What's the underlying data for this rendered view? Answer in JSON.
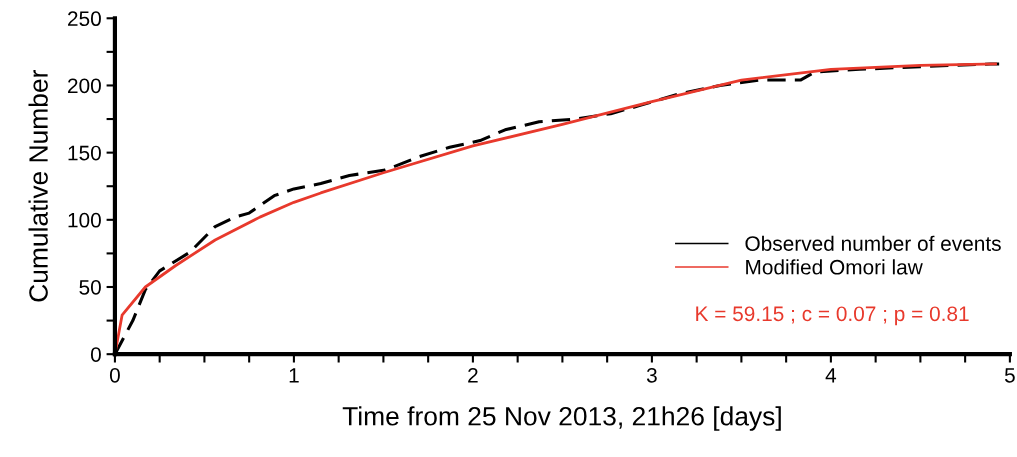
{
  "chart_data": {
    "type": "line",
    "xlabel": "Time from 25 Nov 2013, 21h26 [days]",
    "ylabel": "Cumulative Number",
    "xlim": [
      0,
      5
    ],
    "ylim": [
      0,
      250
    ],
    "xticks": [
      0,
      {
        "value": 0.25,
        "label": null
      },
      {
        "value": 0.5,
        "label": null
      },
      {
        "value": 0.75,
        "label": null
      },
      1,
      {
        "value": 1.25,
        "label": null
      },
      {
        "value": 1.5,
        "label": null
      },
      {
        "value": 1.75,
        "label": null
      },
      2,
      {
        "value": 2.25,
        "label": null
      },
      {
        "value": 2.5,
        "label": null
      },
      {
        "value": 2.75,
        "label": null
      },
      3,
      {
        "value": 3.25,
        "label": null
      },
      {
        "value": 3.5,
        "label": null
      },
      {
        "value": 3.75,
        "label": null
      },
      4,
      {
        "value": 4.25,
        "label": null
      },
      {
        "value": 4.5,
        "label": null
      },
      {
        "value": 4.75,
        "label": null
      },
      5
    ],
    "yticks": [
      0,
      {
        "value": 25,
        "label": null
      },
      50,
      {
        "value": 75,
        "label": null
      },
      100,
      {
        "value": 125,
        "label": null
      },
      150,
      {
        "value": 175,
        "label": null
      },
      200,
      {
        "value": 225,
        "label": null
      },
      250
    ],
    "grid": false,
    "legend": "bottom right",
    "series": [
      {
        "name": "Observed number of events",
        "color": "#000000",
        "line_style": "dashed",
        "x": [
          0,
          0.1,
          0.17,
          0.25,
          0.42,
          0.56,
          0.67,
          0.75,
          0.89,
          1.0,
          1.15,
          1.31,
          1.51,
          1.7,
          1.87,
          2.04,
          2.18,
          2.37,
          2.57,
          2.77,
          2.93,
          3.16,
          3.38,
          3.6,
          3.83,
          3.91,
          4.16,
          4.5,
          4.89,
          4.94
        ],
        "values": [
          0,
          25,
          48,
          62,
          76,
          95,
          102,
          105,
          118,
          123,
          127,
          133,
          137,
          147,
          154,
          159,
          167,
          173,
          175,
          179,
          185,
          194,
          200,
          204,
          204,
          210,
          212,
          214,
          216,
          216
        ]
      },
      {
        "name": "Modified Omori law",
        "color": "#e8392c",
        "line_style": "solid",
        "x": [
          0,
          0.04,
          0.17,
          0.34,
          0.56,
          0.81,
          1.0,
          1.15,
          1.5,
          2.0,
          2.5,
          3.0,
          3.5,
          4.0,
          4.5,
          4.92
        ],
        "values": [
          0,
          29,
          50,
          66,
          85,
          102,
          113,
          120,
          135,
          155,
          171,
          188,
          204,
          212,
          215,
          216
        ]
      }
    ],
    "annotations": [
      "K = 59.15 ; c = 0.07 ; p = 0.81"
    ]
  }
}
